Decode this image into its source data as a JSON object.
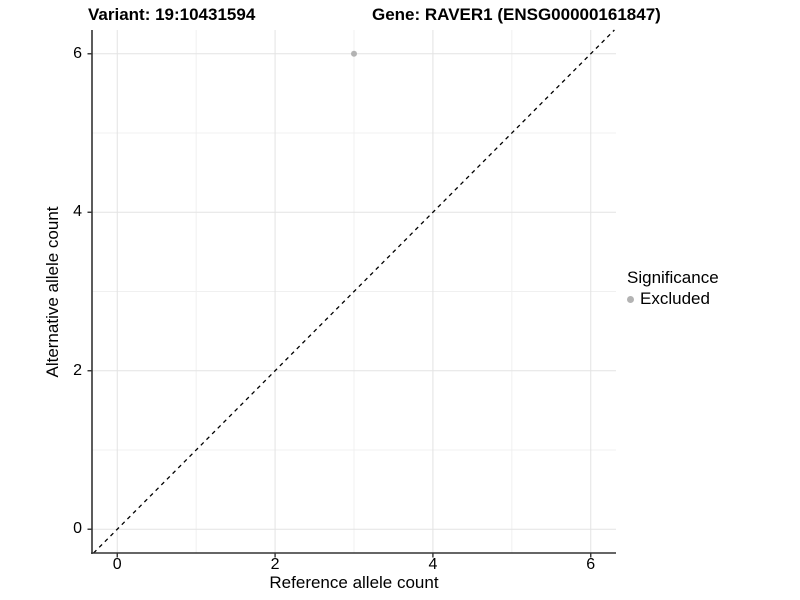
{
  "header": {
    "variant_title": "Variant: 19:10431594",
    "gene_title": "Gene: RAVER1 (ENSG00000161847)"
  },
  "axes": {
    "x_label": "Reference allele count",
    "y_label": "Alternative allele count"
  },
  "legend": {
    "title": "Significance",
    "items": [
      {
        "label": "Excluded",
        "color": "#b3b3b3"
      }
    ]
  },
  "colors": {
    "background": "#ffffff",
    "grid_major": "#e3e3e3",
    "grid_minor": "#f0f0f0",
    "axis": "#333333",
    "reference_line": "#000000",
    "text": "#000000"
  },
  "chart_data": {
    "type": "scatter",
    "titles": [
      "Variant: 19:10431594",
      "Gene: RAVER1 (ENSG00000161847)"
    ],
    "xlabel": "Reference allele count",
    "ylabel": "Alternative allele count",
    "xlim": [
      -0.32,
      6.32
    ],
    "ylim": [
      -0.3,
      6.3
    ],
    "x_ticks": [
      0,
      2,
      4,
      6
    ],
    "y_ticks": [
      0,
      2,
      4,
      6
    ],
    "x_minor_ticks": [
      1,
      3,
      5
    ],
    "y_minor_ticks": [
      1,
      3,
      5
    ],
    "grid": "major+minor",
    "legend_title": "Significance",
    "legend_position": "right",
    "reference_line": {
      "kind": "identity y=x",
      "style": "dashed",
      "color": "#000000"
    },
    "series": [
      {
        "name": "Excluded",
        "color": "#b3b3b3",
        "points": [
          [
            3,
            6
          ]
        ]
      }
    ]
  }
}
